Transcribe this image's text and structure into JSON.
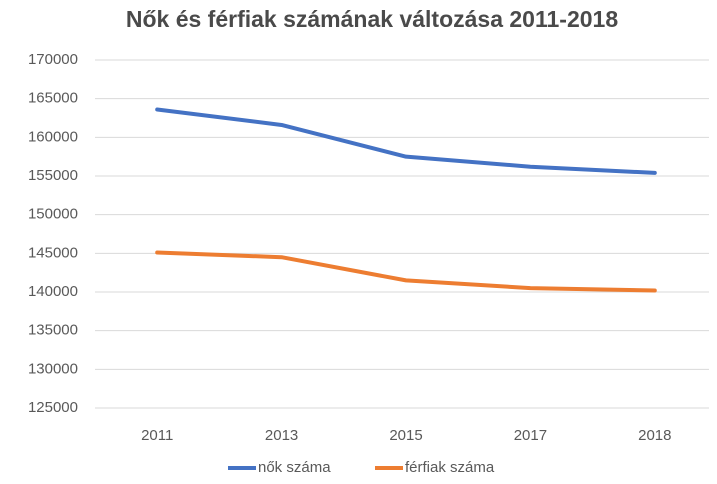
{
  "chart_data": {
    "type": "line",
    "title": "Nők és férfiak számának változása 2011-2018",
    "categories": [
      "2011",
      "2013",
      "2015",
      "2017",
      "2018"
    ],
    "series": [
      {
        "name": "nők száma",
        "color": "#4472c4",
        "values": [
          163600,
          161600,
          157500,
          156200,
          155400
        ]
      },
      {
        "name": "férfiak száma",
        "color": "#ed7d31",
        "values": [
          145100,
          144500,
          141500,
          140500,
          140200
        ]
      }
    ],
    "ylim": [
      125000,
      170000
    ],
    "yticks": [
      125000,
      130000,
      135000,
      140000,
      145000,
      150000,
      155000,
      160000,
      165000,
      170000
    ],
    "grid": true,
    "legend": "bottom"
  }
}
